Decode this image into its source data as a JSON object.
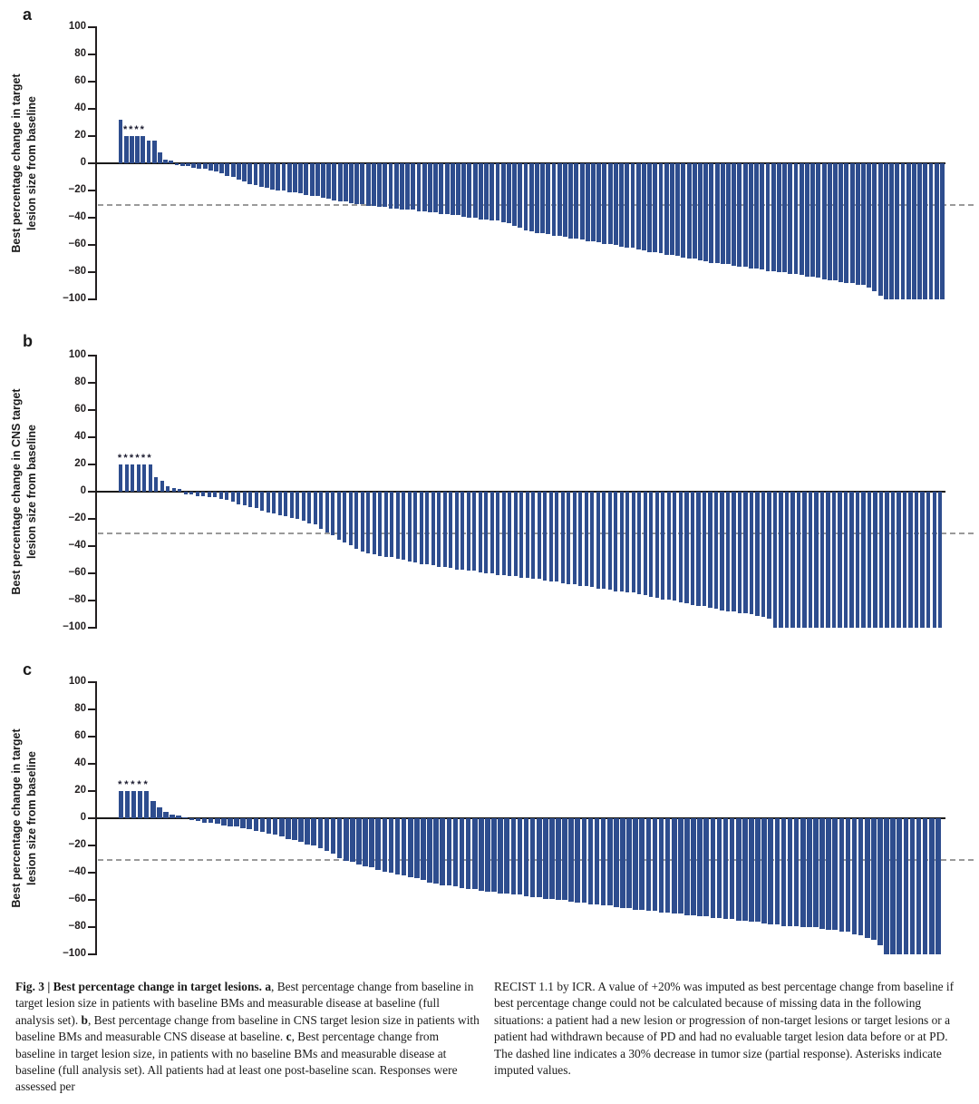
{
  "figure": {
    "bar_color": "#2e4d8e",
    "axis_color": "#231f20",
    "dash_color": "#9a9a9a",
    "imputed_marker": "*",
    "dashed_line_meaning": "30% decrease in tumor size (partial response)"
  },
  "chart_data": [
    {
      "type": "bar",
      "panel": "a",
      "title": "",
      "xlabel": "",
      "ylabel": "Best percentage change in target lesion size from baseline",
      "ylabel_lines": [
        "Best percentage change in target",
        "lesion size from baseline"
      ],
      "ylim": [
        -100,
        100
      ],
      "yticks": [
        100,
        80,
        60,
        40,
        20,
        0,
        -20,
        -40,
        -60,
        -80,
        -100
      ],
      "yticks_labels": [
        "100",
        "80",
        "60",
        "40",
        "20",
        "0",
        "−20",
        "−40",
        "−60",
        "−80",
        "−100"
      ],
      "reference_line": -30,
      "grid": false,
      "legend": "none",
      "imputed_value": 20,
      "imputed_bar_indices": [
        1,
        2,
        3,
        4
      ],
      "values": [
        32,
        20,
        20,
        20,
        20,
        17,
        17,
        8,
        3,
        2,
        -1,
        -2,
        -2,
        -3,
        -4,
        -4,
        -5,
        -6,
        -7,
        -9,
        -10,
        -12,
        -13,
        -15,
        -16,
        -17,
        -18,
        -19,
        -20,
        -20,
        -21,
        -21,
        -22,
        -23,
        -24,
        -24,
        -25,
        -26,
        -27,
        -28,
        -28,
        -29,
        -30,
        -30,
        -31,
        -31,
        -32,
        -32,
        -33,
        -33,
        -34,
        -34,
        -34,
        -35,
        -35,
        -36,
        -36,
        -37,
        -37,
        -38,
        -38,
        -39,
        -40,
        -40,
        -41,
        -41,
        -42,
        -42,
        -43,
        -44,
        -46,
        -47,
        -49,
        -50,
        -51,
        -51,
        -52,
        -53,
        -53,
        -54,
        -55,
        -55,
        -56,
        -57,
        -57,
        -58,
        -59,
        -59,
        -60,
        -61,
        -62,
        -62,
        -63,
        -64,
        -65,
        -65,
        -66,
        -67,
        -67,
        -68,
        -69,
        -70,
        -70,
        -71,
        -72,
        -73,
        -73,
        -74,
        -74,
        -75,
        -76,
        -76,
        -77,
        -77,
        -78,
        -79,
        -79,
        -80,
        -80,
        -81,
        -81,
        -82,
        -83,
        -83,
        -84,
        -85,
        -86,
        -86,
        -87,
        -88,
        -88,
        -89,
        -89,
        -91,
        -94,
        -97,
        -100,
        -100,
        -100,
        -100,
        -100,
        -100,
        -100,
        -100,
        -100,
        -100,
        -100
      ]
    },
    {
      "type": "bar",
      "panel": "b",
      "title": "",
      "xlabel": "",
      "ylabel": "Best percentage change in CNS target lesion size from baseline",
      "ylabel_lines": [
        "Best percentage change in CNS target",
        "lesion size from baseline"
      ],
      "ylim": [
        -100,
        100
      ],
      "yticks": [
        100,
        80,
        60,
        40,
        20,
        0,
        -20,
        -40,
        -60,
        -80,
        -100
      ],
      "yticks_labels": [
        "100",
        "80",
        "60",
        "40",
        "20",
        "0",
        "−20",
        "−40",
        "−60",
        "−80",
        "−100"
      ],
      "reference_line": -30,
      "grid": false,
      "legend": "none",
      "imputed_value": 20,
      "imputed_bar_indices": [
        0,
        1,
        2,
        3,
        4,
        5
      ],
      "values": [
        20,
        20,
        20,
        20,
        20,
        20,
        11,
        8,
        4,
        3,
        2,
        -2,
        -2,
        -3,
        -3,
        -4,
        -4,
        -5,
        -6,
        -7,
        -9,
        -10,
        -11,
        -12,
        -14,
        -15,
        -16,
        -17,
        -18,
        -19,
        -20,
        -21,
        -23,
        -24,
        -27,
        -30,
        -32,
        -35,
        -37,
        -39,
        -42,
        -44,
        -45,
        -46,
        -47,
        -48,
        -48,
        -49,
        -50,
        -51,
        -52,
        -53,
        -53,
        -54,
        -55,
        -55,
        -56,
        -57,
        -57,
        -58,
        -58,
        -59,
        -60,
        -60,
        -61,
        -61,
        -62,
        -62,
        -63,
        -63,
        -64,
        -64,
        -65,
        -66,
        -66,
        -67,
        -68,
        -68,
        -69,
        -69,
        -70,
        -71,
        -71,
        -72,
        -73,
        -73,
        -74,
        -74,
        -75,
        -76,
        -77,
        -78,
        -79,
        -79,
        -80,
        -81,
        -82,
        -83,
        -84,
        -84,
        -85,
        -86,
        -87,
        -88,
        -88,
        -89,
        -89,
        -90,
        -91,
        -92,
        -93,
        -100,
        -100,
        -100,
        -100,
        -100,
        -100,
        -100,
        -100,
        -100,
        -100,
        -100,
        -100,
        -100,
        -100,
        -100,
        -100,
        -100,
        -100,
        -100,
        -100,
        -100,
        -100,
        -100,
        -100,
        -100,
        -100,
        -100,
        -100,
        -100
      ]
    },
    {
      "type": "bar",
      "panel": "c",
      "title": "",
      "xlabel": "",
      "ylabel": "Best percentage change in target lesion size from baseline",
      "ylabel_lines": [
        "Best percentage change in target",
        "lesion size from baseline"
      ],
      "ylim": [
        -100,
        100
      ],
      "yticks": [
        100,
        80,
        60,
        40,
        20,
        0,
        -20,
        -40,
        -60,
        -80,
        -100
      ],
      "yticks_labels": [
        "100",
        "80",
        "60",
        "40",
        "20",
        "0",
        "−20",
        "−40",
        "−60",
        "−80",
        "−100"
      ],
      "reference_line": -30,
      "grid": false,
      "legend": "none",
      "imputed_value": 20,
      "imputed_bar_indices": [
        0,
        1,
        2,
        3,
        4
      ],
      "values": [
        20,
        20,
        20,
        20,
        20,
        13,
        8,
        5,
        3,
        2,
        1,
        -1,
        -2,
        -3,
        -3,
        -4,
        -5,
        -6,
        -6,
        -7,
        -8,
        -9,
        -10,
        -11,
        -12,
        -13,
        -15,
        -16,
        -17,
        -19,
        -20,
        -22,
        -24,
        -26,
        -29,
        -31,
        -32,
        -34,
        -35,
        -36,
        -38,
        -39,
        -40,
        -41,
        -42,
        -43,
        -44,
        -45,
        -47,
        -48,
        -49,
        -49,
        -50,
        -51,
        -52,
        -52,
        -53,
        -54,
        -54,
        -55,
        -55,
        -56,
        -56,
        -57,
        -58,
        -58,
        -59,
        -59,
        -60,
        -60,
        -61,
        -62,
        -62,
        -63,
        -63,
        -64,
        -64,
        -65,
        -66,
        -66,
        -67,
        -67,
        -68,
        -68,
        -69,
        -69,
        -70,
        -70,
        -71,
        -71,
        -72,
        -72,
        -73,
        -73,
        -74,
        -74,
        -75,
        -75,
        -76,
        -76,
        -77,
        -78,
        -78,
        -79,
        -79,
        -79,
        -80,
        -80,
        -80,
        -81,
        -82,
        -82,
        -83,
        -83,
        -85,
        -86,
        -88,
        -89,
        -93,
        -100,
        -100,
        -100,
        -100,
        -100,
        -100,
        -100,
        -100,
        -100
      ]
    }
  ],
  "caption": {
    "left": {
      "segments": [
        {
          "text": "Fig. 3 | Best percentage change in target lesions. ",
          "bold": true
        },
        {
          "text": "a",
          "bold": true
        },
        {
          "text": ", Best percentage change from baseline in target lesion size in patients with baseline BMs and measurable disease at baseline (full analysis set). ",
          "bold": false
        },
        {
          "text": "b",
          "bold": true
        },
        {
          "text": ", Best percentage change from baseline in CNS target lesion size in patients with baseline BMs and measurable CNS disease at baseline. ",
          "bold": false
        },
        {
          "text": "c",
          "bold": true
        },
        {
          "text": ", Best percentage change from baseline in target lesion size, in patients with no baseline BMs and measurable disease at baseline (full analysis set). All patients had at least one post-baseline scan. Responses were assessed per",
          "bold": false
        }
      ]
    },
    "right": {
      "segments": [
        {
          "text": "RECIST 1.1 by ICR. A value of +20% was imputed as best percentage change from baseline if best percentage change could not be calculated because of missing data in the following situations: a patient had a new lesion or progression of non-target lesions or target lesions or a patient had withdrawn because of PD and had no evaluable target lesion data before or at PD. The dashed line indicates a 30% decrease in tumor size (partial response). Asterisks indicate imputed values.",
          "bold": false
        }
      ]
    }
  }
}
